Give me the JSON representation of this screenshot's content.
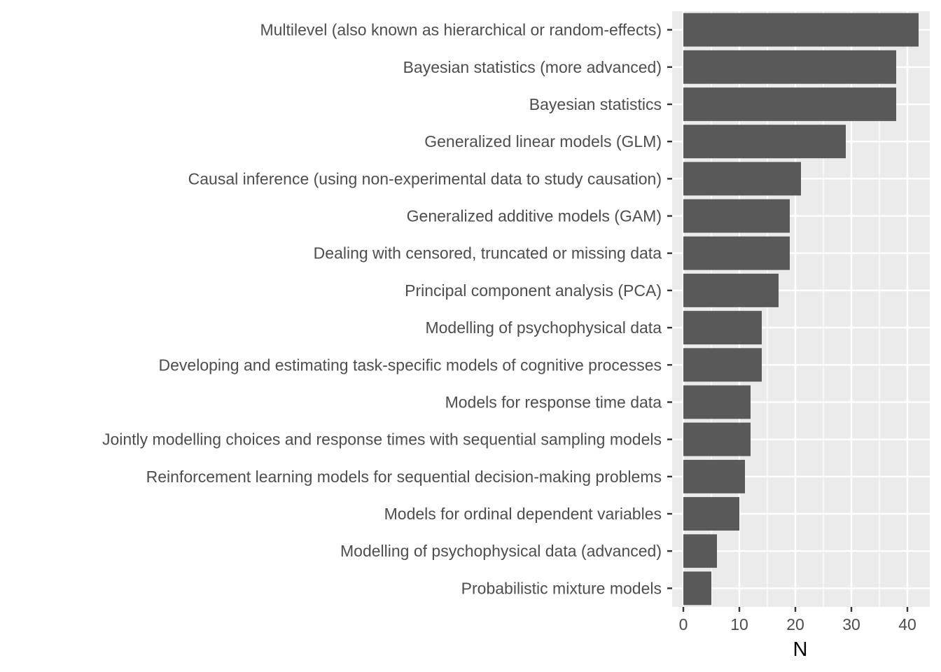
{
  "chart_data": {
    "type": "bar",
    "orientation": "horizontal",
    "categories": [
      "Multilevel (also known as hierarchical or random-effects)",
      "Bayesian statistics (more advanced)",
      "Bayesian statistics",
      "Generalized linear models (GLM)",
      "Causal inference (using non-experimental data to study causation)",
      "Generalized additive models (GAM)",
      "Dealing with censored, truncated or missing data",
      "Principal component analysis (PCA)",
      "Modelling of psychophysical data",
      "Developing and estimating task-specific models of cognitive processes",
      "Models for response time data",
      "Jointly modelling choices and response times with sequential sampling models",
      "Reinforcement learning models for sequential decision-making problems",
      "Models for ordinal dependent variables",
      "Modelling of psychophysical data (advanced)",
      "Probabilistic mixture models"
    ],
    "values": [
      42,
      38,
      38,
      29,
      21,
      19,
      19,
      17,
      14,
      14,
      12,
      12,
      11,
      10,
      6,
      5
    ],
    "xlabel": "N",
    "ylabel": "",
    "xlim": [
      -2,
      44
    ],
    "xticks": [
      0,
      10,
      20,
      30,
      40
    ],
    "xtick_labels": [
      "0",
      "10",
      "20",
      "30",
      "40"
    ],
    "grid": true,
    "colors": {
      "bar": "#595959",
      "panel": "#ebebeb",
      "grid": "#ffffff",
      "tick_text": "#4d4d4d",
      "tick_mark": "#333333",
      "title_text": "#000000"
    }
  }
}
